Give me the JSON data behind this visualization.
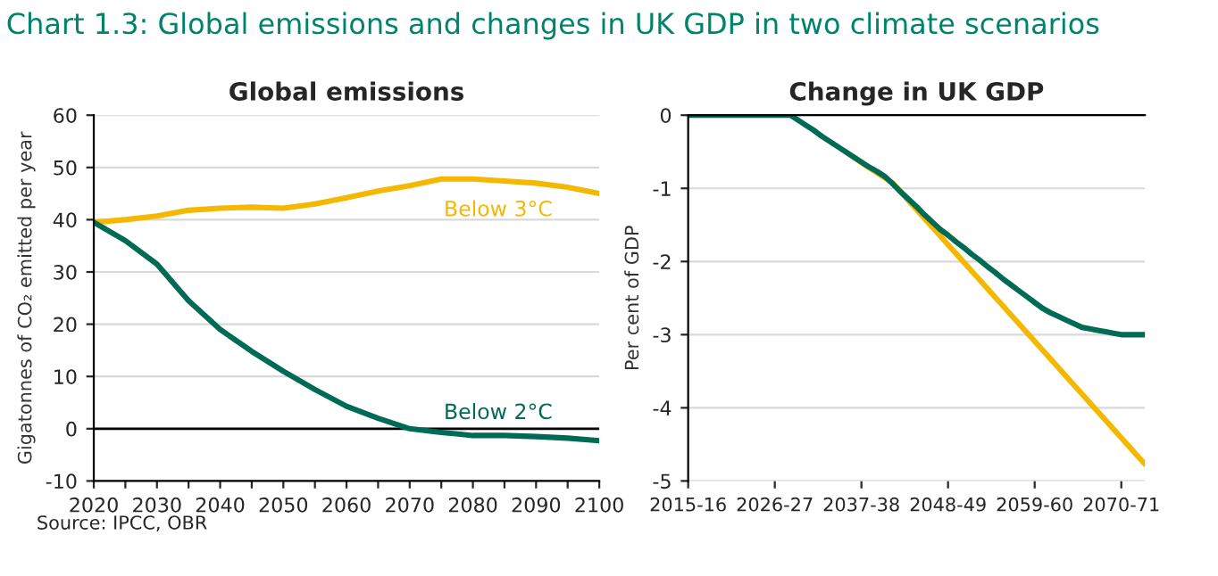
{
  "chart_data": [
    {
      "type": "line",
      "title": "Global emissions",
      "ylabel": "Gigatonnes of CO₂ emitted per year",
      "annotations": [
        "Chart 1.3: Global emissions and changes in UK GDP in two climate scenarios",
        "Source: IPCC, OBR"
      ],
      "x": [
        2020,
        2025,
        2030,
        2035,
        2040,
        2045,
        2050,
        2055,
        2060,
        2065,
        2070,
        2075,
        2080,
        2085,
        2090,
        2095,
        2100
      ],
      "series": [
        {
          "name": "Below 3°C",
          "color": "#f5b800",
          "values": [
            39.5,
            40,
            40.7,
            41.8,
            42.2,
            42.4,
            42.2,
            43,
            44.2,
            45.5,
            46.5,
            47.8,
            47.8,
            47.4,
            47,
            46.2,
            45
          ]
        },
        {
          "name": "Below 2°C",
          "color": "#006b55",
          "values": [
            39.5,
            36,
            31.5,
            24.5,
            19,
            14.8,
            11,
            7.5,
            4.3,
            2,
            0,
            -0.7,
            -1.3,
            -1.3,
            -1.5,
            -1.8,
            -2.3
          ]
        }
      ],
      "xlim": [
        2020,
        2100
      ],
      "ylim": [
        -10,
        60
      ],
      "xticks": [
        2020,
        {
          "value": 2025,
          "label": null
        },
        2030,
        {
          "value": 2035,
          "label": null
        },
        2040,
        {
          "value": 2045,
          "label": null
        },
        2050,
        {
          "value": 2055,
          "label": null
        },
        2060,
        {
          "value": 2065,
          "label": null
        },
        2070,
        {
          "value": 2075,
          "label": null
        },
        2080,
        {
          "value": 2085,
          "label": null
        },
        2090,
        {
          "value": 2095,
          "label": null
        },
        2100
      ],
      "yticks": [
        -10,
        0,
        10,
        20,
        30,
        40,
        50,
        60
      ],
      "ref_lines": [
        {
          "axis": "y",
          "value": 0,
          "color": "#000000"
        }
      ],
      "grid": "y",
      "legend": false
    },
    {
      "type": "line",
      "title": "Change in UK GDP",
      "ylabel": "Per cent of GDP",
      "series": [
        {
          "color": "#f5b800",
          "values": [
            null,
            null,
            null,
            null,
            null,
            null,
            null,
            null,
            null,
            null,
            null,
            null,
            null,
            null,
            null,
            null,
            null,
            null,
            null,
            null,
            -0.5,
            -0.57,
            -0.65,
            -0.72,
            -0.79,
            -0.86,
            -0.93,
            -1.05,
            -1.17,
            -1.29,
            -1.41,
            -1.53,
            -1.65,
            -1.77,
            -1.89,
            -2.01,
            -2.13,
            -2.25,
            -2.37,
            -2.49,
            -2.61,
            -2.73,
            -2.85,
            -2.97,
            -3.09,
            -3.21,
            -3.33,
            -3.45,
            -3.57,
            -3.69,
            -3.81,
            -3.93,
            -4.05,
            -4.17,
            -4.29,
            -4.41,
            -4.53,
            -4.65,
            -4.77
          ]
        },
        {
          "color": "#006b55",
          "values": [
            0,
            0,
            0,
            0,
            0,
            0,
            0,
            0,
            0,
            0,
            0,
            0,
            0,
            0,
            -0.07,
            -0.14,
            -0.21,
            -0.29,
            -0.36,
            -0.43,
            -0.5,
            -0.57,
            -0.64,
            -0.71,
            -0.77,
            -0.84,
            -0.94,
            -1.05,
            -1.15,
            -1.25,
            -1.36,
            -1.46,
            -1.56,
            -1.64,
            -1.73,
            -1.81,
            -1.9,
            -1.98,
            -2.07,
            -2.15,
            -2.24,
            -2.32,
            -2.4,
            -2.48,
            -2.56,
            -2.64,
            -2.7,
            -2.75,
            -2.8,
            -2.85,
            -2.9,
            -2.92,
            -2.94,
            -2.96,
            -2.98,
            -3,
            -3,
            -3,
            -3
          ]
        }
      ],
      "categories": [
        "2015-16",
        null,
        null,
        null,
        null,
        null,
        null,
        null,
        null,
        null,
        null,
        "2026-27",
        null,
        null,
        null,
        null,
        null,
        null,
        null,
        null,
        null,
        null,
        "2037-38",
        null,
        null,
        null,
        null,
        null,
        null,
        null,
        null,
        null,
        null,
        "2048-49",
        null,
        null,
        null,
        null,
        null,
        null,
        null,
        null,
        null,
        null,
        "2059-60",
        null,
        null,
        null,
        null,
        null,
        null,
        null,
        null,
        null,
        null,
        "2070-71",
        null,
        null,
        null
      ],
      "ylim": [
        -5,
        0
      ],
      "yticks": [
        -5,
        -4,
        -3,
        -2,
        -1,
        0
      ],
      "grid": "y",
      "legend": false
    }
  ]
}
